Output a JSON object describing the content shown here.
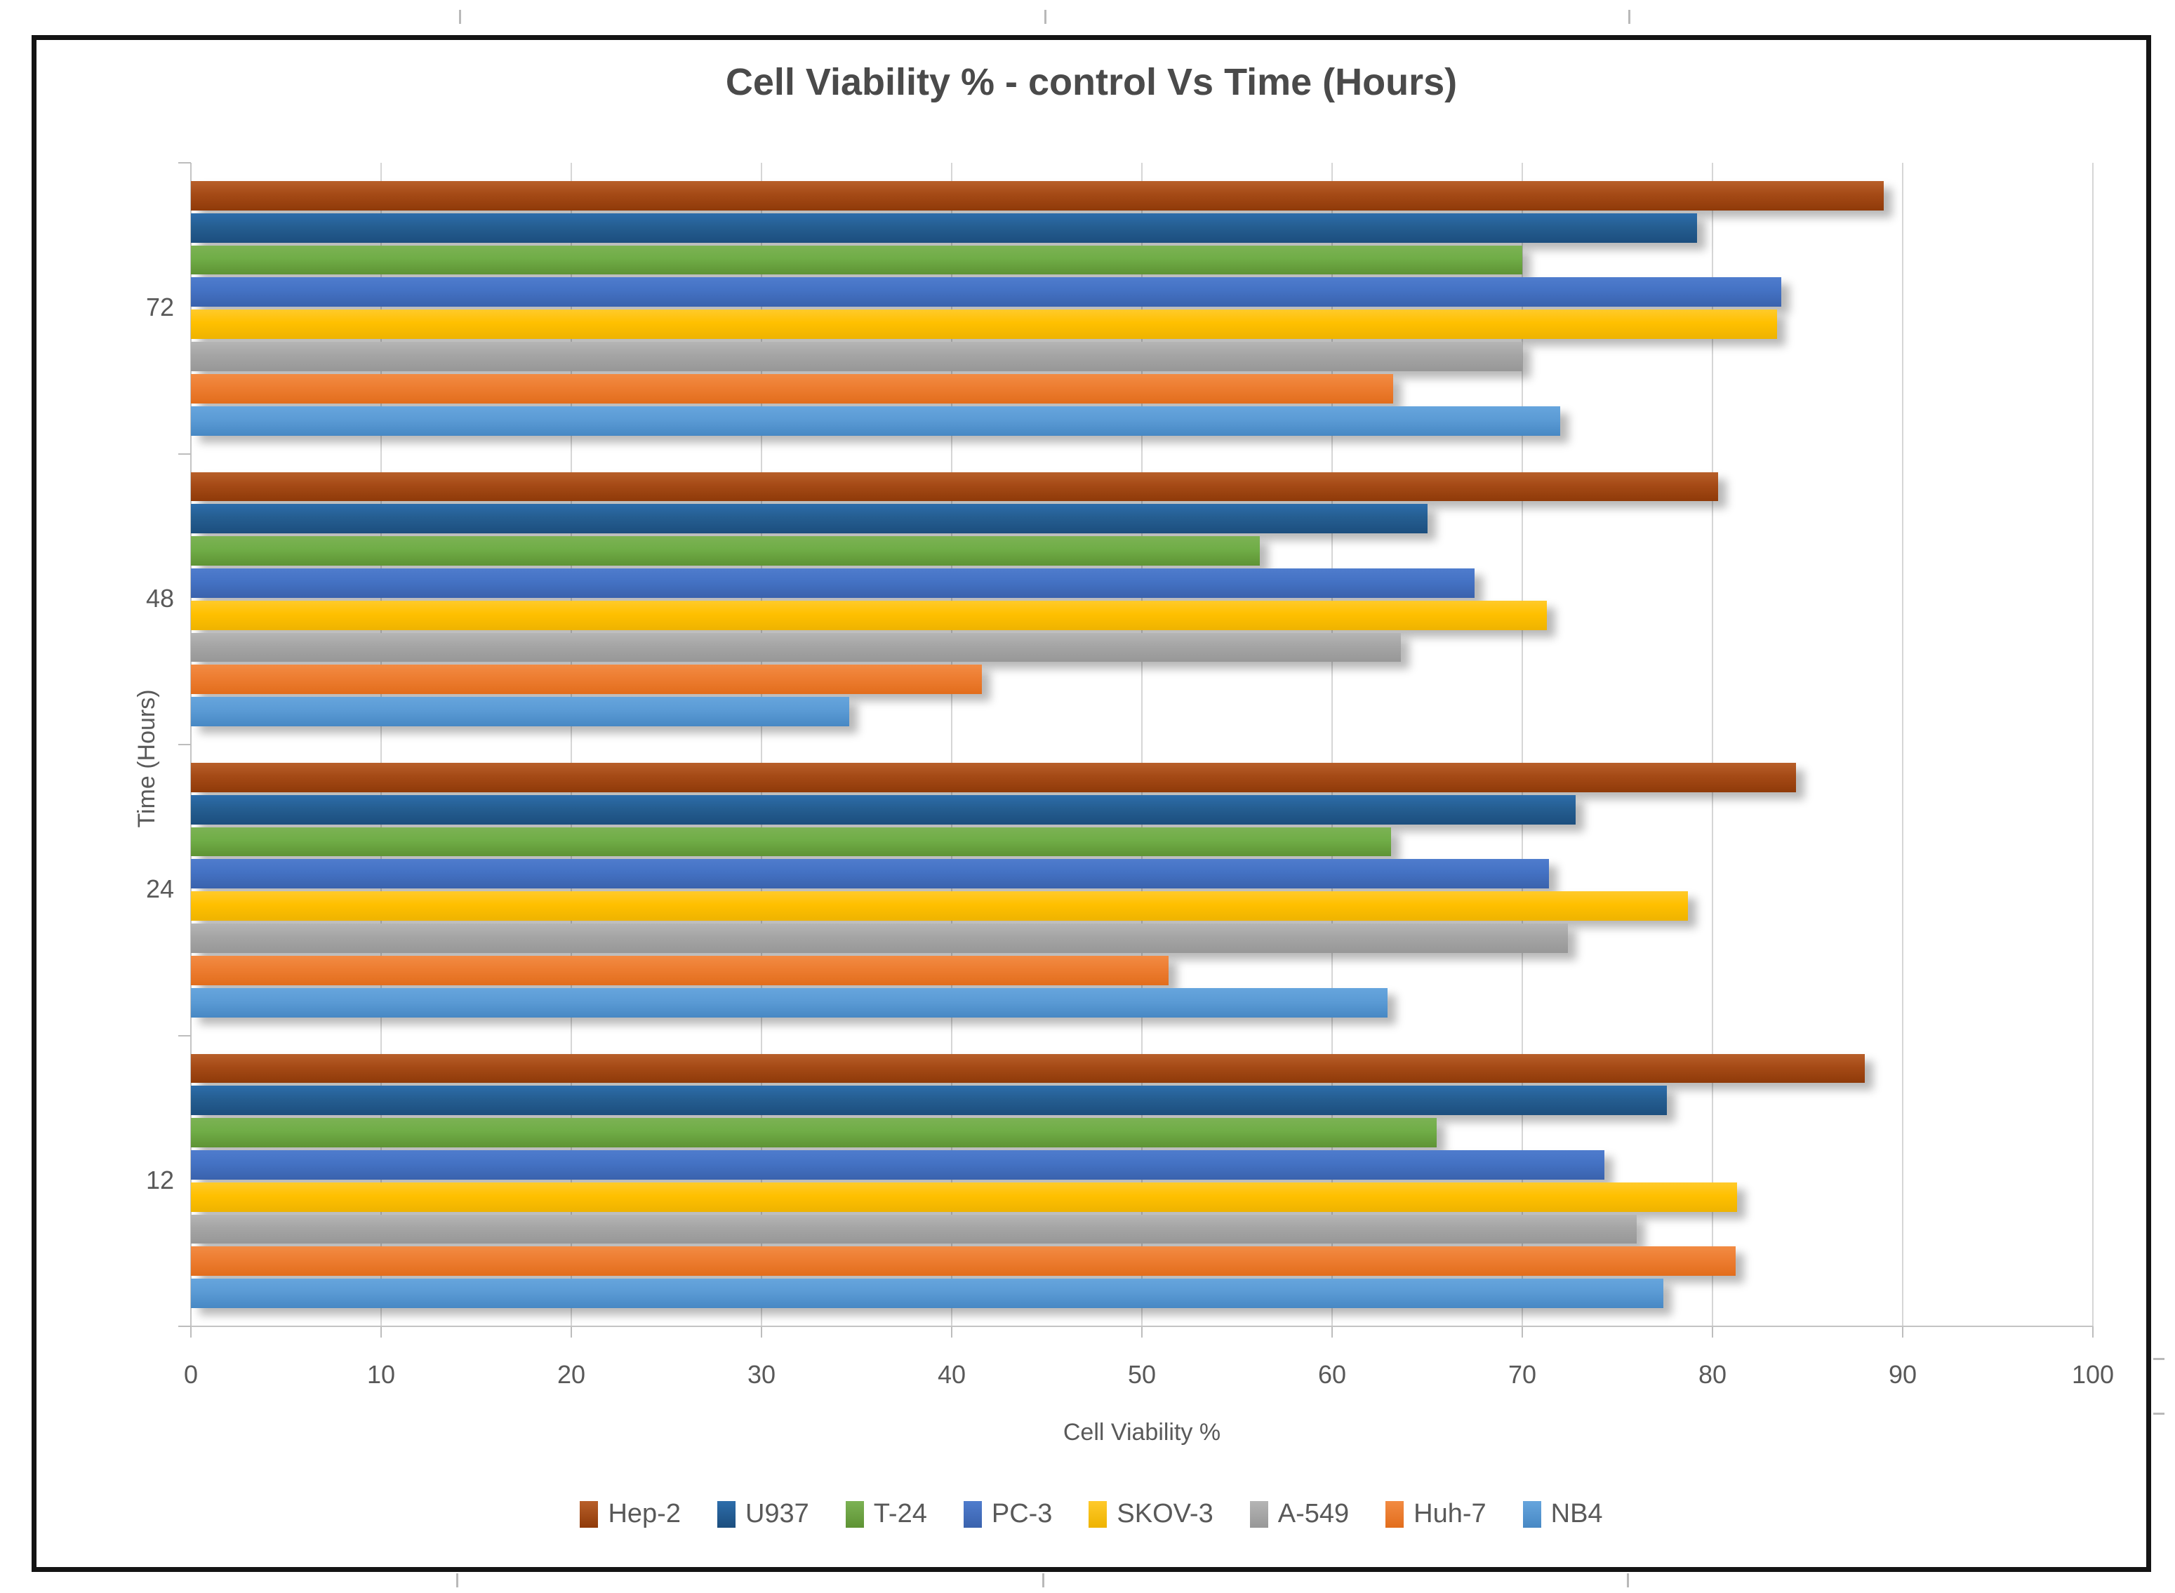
{
  "window": {
    "background": "#ffffff",
    "frame_border_color": "#141414"
  },
  "chart_data": {
    "type": "bar",
    "orientation": "horizontal",
    "title": "Cell Viability % - control Vs Time (Hours)",
    "xlabel": "Cell Viability %",
    "ylabel": "Time (Hours)",
    "categories": [
      "72",
      "48",
      "24",
      "12"
    ],
    "category_order": "top-to-bottom",
    "series": [
      {
        "name": "Hep-2",
        "color": "#A54A16",
        "gradient": [
          "#b85f2a",
          "#8f3a09"
        ],
        "values": [
          89.0,
          80.3,
          84.4,
          88.0
        ]
      },
      {
        "name": "U937",
        "color": "#255E91",
        "gradient": [
          "#2d6dab",
          "#1c4e7e"
        ],
        "values": [
          79.2,
          65.0,
          72.8,
          77.6
        ]
      },
      {
        "name": "T-24",
        "color": "#70AD47",
        "gradient": [
          "#7cb254",
          "#5e9334"
        ],
        "values": [
          70.0,
          56.2,
          63.1,
          65.5
        ]
      },
      {
        "name": "PC-3",
        "color": "#4472C4",
        "gradient": [
          "#4f7ccd",
          "#3a62ad"
        ],
        "values": [
          83.6,
          67.5,
          71.4,
          74.3
        ]
      },
      {
        "name": "SKOV-3",
        "color": "#FFC000",
        "gradient": [
          "#ffca2b",
          "#eeb300"
        ],
        "values": [
          83.4,
          71.3,
          78.7,
          81.3
        ]
      },
      {
        "name": "A-549",
        "color": "#A5A5A5",
        "gradient": [
          "#b5b5b5",
          "#979797"
        ],
        "values": [
          70.0,
          63.6,
          72.4,
          76.0
        ]
      },
      {
        "name": "Huh-7",
        "color": "#ED7D31",
        "gradient": [
          "#f28b43",
          "#e26d1c"
        ],
        "values": [
          63.2,
          41.6,
          51.4,
          81.2
        ]
      },
      {
        "name": "NB4",
        "color": "#5B9BD5",
        "gradient": [
          "#66a5dd",
          "#4788c4"
        ],
        "values": [
          72.0,
          34.6,
          62.9,
          77.4
        ]
      }
    ],
    "xlim": [
      0,
      100
    ],
    "x_ticks": [
      "0",
      "10",
      "20",
      "30",
      "40",
      "50",
      "60",
      "70",
      "80",
      "90",
      "100"
    ],
    "grid": true,
    "legend_position": "bottom",
    "colors": {
      "text": "#595959",
      "title": "#4a4a4a",
      "gridline": "#d6d6d6",
      "axis_line": "#c4c4c4"
    }
  }
}
